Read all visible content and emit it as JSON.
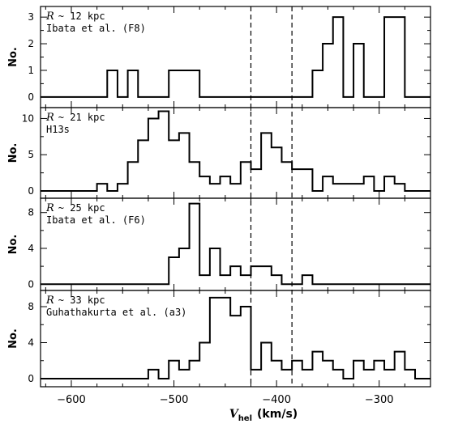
{
  "chart_data": {
    "type": "histogram",
    "xlabel_main": "V",
    "xlabel_sub": "hel",
    "xlabel_units": "(km/s)",
    "xlim": [
      -630,
      -250
    ],
    "xticks_major": [
      -600,
      -500,
      -400,
      -300
    ],
    "xtick_labels": [
      "−600",
      "−500",
      "−400",
      "−300"
    ],
    "dashed_lines_x": [
      -425,
      -385
    ],
    "bin_width": 10,
    "panels": [
      {
        "r_label": "R",
        "r_value": "~ 12 kpc",
        "source": "Ibata et al. (F8)",
        "ylabel": "No.",
        "ylim": [
          -0.4,
          3.4
        ],
        "yticks": [
          0,
          1,
          2,
          3
        ],
        "ytick_labels": [
          "0",
          "1",
          "2",
          "3"
        ],
        "bin_start": -565,
        "counts": [
          1,
          0,
          1,
          0,
          0,
          0,
          1,
          1,
          1,
          0,
          0,
          0,
          0,
          0,
          0,
          0,
          0,
          0,
          0,
          0,
          1,
          2,
          3,
          0,
          2,
          0,
          0,
          3,
          3,
          0,
          0
        ]
      },
      {
        "r_label": "R",
        "r_value": "~ 21 kpc",
        "source": "H13s",
        "ylabel": "No.",
        "ylim": [
          -1,
          11.5
        ],
        "yticks": [
          0,
          5,
          10
        ],
        "ytick_labels": [
          "0",
          "5",
          "10"
        ],
        "bin_start": -575,
        "counts": [
          1,
          0,
          1,
          4,
          7,
          10,
          11,
          7,
          8,
          4,
          2,
          1,
          2,
          1,
          4,
          3,
          8,
          6,
          4,
          3,
          3,
          0,
          2,
          1,
          1,
          1,
          2,
          0,
          2,
          1
        ]
      },
      {
        "r_label": "R",
        "r_value": "~ 25 kpc",
        "source": "Ibata et al. (F6)",
        "ylabel": "No.",
        "ylim": [
          -0.7,
          9.6
        ],
        "yticks": [
          0,
          4,
          8
        ],
        "ytick_labels": [
          "0",
          "4",
          "8"
        ],
        "bin_start": -505,
        "counts": [
          3,
          4,
          9,
          1,
          4,
          1,
          2,
          1,
          2,
          2,
          1,
          0,
          0,
          1
        ]
      },
      {
        "r_label": "R",
        "r_value": "~ 33 kpc",
        "source": "Guhathakurta et al. (a3)",
        "ylabel": "No.",
        "ylim": [
          -0.9,
          9.8
        ],
        "yticks": [
          0,
          4,
          8
        ],
        "ytick_labels": [
          "0",
          "4",
          "8"
        ],
        "bin_start": -525,
        "counts": [
          1,
          0,
          2,
          1,
          2,
          4,
          9,
          9,
          7,
          8,
          1,
          4,
          2,
          1,
          2,
          1,
          3,
          2,
          1,
          0,
          2,
          1,
          2,
          1,
          3,
          1
        ]
      }
    ]
  }
}
